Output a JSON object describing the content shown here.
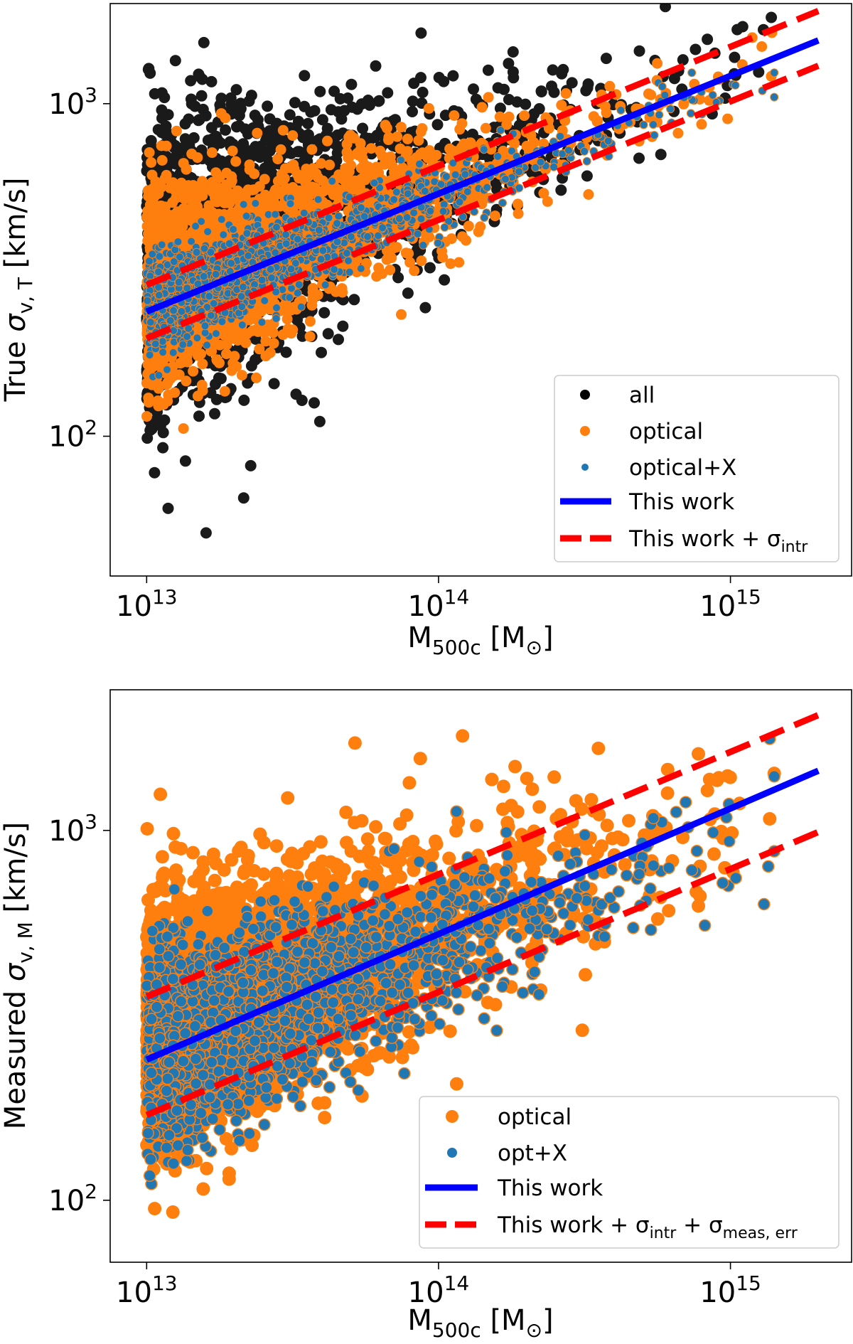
{
  "chart_data": [
    {
      "type": "scatter",
      "scale": "log-log",
      "xlabel": "M",
      "xlabel_sub": "500c",
      "xlabel_unit": "[M",
      "xlabel_unit_symbol": "⊙",
      "xlabel_unit_close": "]",
      "ylabel_prefix": "True ",
      "ylabel_symbol": "σ",
      "ylabel_sub": "v, T",
      "ylabel_unit": " [km/s]",
      "xlim": [
        7500000000000.0,
        2600000000000000.0
      ],
      "ylim": [
        38,
        2000
      ],
      "xticks": [
        {
          "base": "10",
          "exp": "13",
          "value": 10000000000000.0
        },
        {
          "base": "10",
          "exp": "14",
          "value": 100000000000000.0
        },
        {
          "base": "10",
          "exp": "15",
          "value": 1000000000000000.0
        }
      ],
      "yticks": [
        {
          "base": "10",
          "exp": "2",
          "value": 100
        },
        {
          "base": "10",
          "exp": "3",
          "value": 1000
        }
      ],
      "series": [
        {
          "name": "all",
          "kind": "scatter",
          "color": "#000000",
          "count": 2200,
          "y_at_1e13": 300,
          "slope": 0.33,
          "scatter_dex_lowmass": 0.22,
          "scatter_dex_highmass": 0.06
        },
        {
          "name": "optical",
          "kind": "scatter",
          "color": "#ff7f0e",
          "count": 2400,
          "y_at_1e13": 265,
          "slope": 0.33,
          "scatter_dex_lowmass": 0.15,
          "scatter_dex_highmass": 0.05
        },
        {
          "name": "optical+X",
          "kind": "scatter",
          "color": "#1f77b4",
          "count": 1800,
          "y_at_1e13": 245,
          "slope": 0.33,
          "scatter_dex_lowmass": 0.07,
          "scatter_dex_highmass": 0.035
        }
      ],
      "fit": {
        "name": "This work",
        "x": [
          10000000000000.0,
          2000000000000000.0
        ],
        "y": [
          237,
          1550
        ],
        "color": "#0000ff"
      },
      "band": {
        "name": "This work + σ",
        "name_sub": "intr",
        "upper": {
          "x": [
            10000000000000.0,
            2000000000000000.0
          ],
          "y": [
            285,
            1900
          ]
        },
        "lower": {
          "x": [
            10000000000000.0,
            2000000000000000.0
          ],
          "y": [
            197,
            1300
          ]
        },
        "color": "#ff0000"
      },
      "legend": {
        "placement": "lower-right",
        "entries": [
          {
            "label": "all"
          },
          {
            "label": "optical"
          },
          {
            "label": "optical+X"
          },
          {
            "label": "This work"
          },
          {
            "label": "This work + σ",
            "sub": "intr"
          }
        ]
      }
    },
    {
      "type": "scatter",
      "scale": "log-log",
      "xlabel": "M",
      "xlabel_sub": "500c",
      "xlabel_unit": "[M",
      "xlabel_unit_symbol": "⊙",
      "xlabel_unit_close": "]",
      "ylabel_prefix": "Measured ",
      "ylabel_symbol": "σ",
      "ylabel_sub": "v, M",
      "ylabel_unit": " [km/s]",
      "xlim": [
        7500000000000.0,
        2600000000000000.0
      ],
      "ylim": [
        68,
        2400
      ],
      "xticks": [
        {
          "base": "10",
          "exp": "13",
          "value": 10000000000000.0
        },
        {
          "base": "10",
          "exp": "14",
          "value": 100000000000000.0
        },
        {
          "base": "10",
          "exp": "15",
          "value": 1000000000000000.0
        }
      ],
      "yticks": [
        {
          "base": "10",
          "exp": "2",
          "value": 100
        },
        {
          "base": "10",
          "exp": "3",
          "value": 1000
        }
      ],
      "series": [
        {
          "name": "optical",
          "kind": "scatter",
          "color": "#ff7f0e",
          "count": 3000,
          "y_at_1e13": 300,
          "slope": 0.28,
          "scatter_dex_lowmass": 0.17,
          "scatter_dex_highmass": 0.1
        },
        {
          "name": "opt+X",
          "kind": "scatter",
          "color": "#1f77b4",
          "count": 2600,
          "y_at_1e13": 250,
          "slope": 0.28,
          "scatter_dex_lowmass": 0.12,
          "scatter_dex_highmass": 0.09
        }
      ],
      "fit": {
        "name": "This work",
        "x": [
          10000000000000.0,
          2000000000000000.0
        ],
        "y": [
          240,
          1450
        ],
        "color": "#0000ff"
      },
      "band": {
        "name": "This work + σ",
        "name_sub": "intr",
        "name_mid": " + σ",
        "name_sub2": "meas, err",
        "upper": {
          "x": [
            10000000000000.0,
            2000000000000000.0
          ],
          "y": [
            355,
            2050
          ]
        },
        "lower": {
          "x": [
            10000000000000.0,
            2000000000000000.0
          ],
          "y": [
            170,
            990
          ]
        },
        "color": "#ff0000"
      },
      "legend": {
        "placement": "lower-right",
        "entries": [
          {
            "label": "optical"
          },
          {
            "label": "opt+X"
          },
          {
            "label": "This work"
          },
          {
            "label": "This work + σ",
            "sub": "intr",
            "mid": " + σ",
            "sub2": "meas, err"
          }
        ]
      }
    }
  ]
}
